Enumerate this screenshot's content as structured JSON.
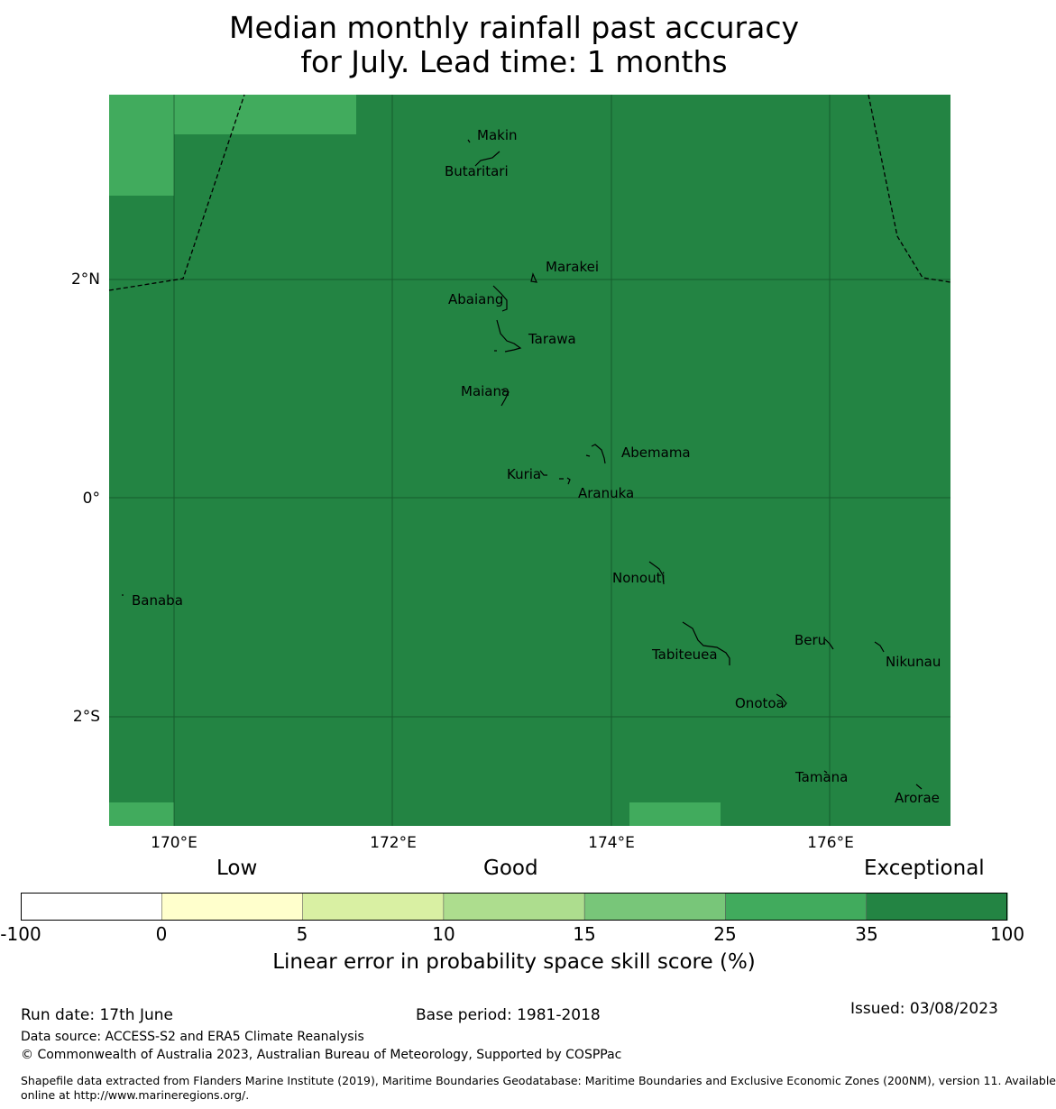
{
  "title": {
    "line1": "Median monthly rainfall past accuracy",
    "line2": "for July. Lead time: 1 months"
  },
  "map": {
    "lon_labels": [
      "170°E",
      "172°E",
      "174°E",
      "176°E"
    ],
    "lat_labels": [
      "2°N",
      "0°",
      "2°S"
    ],
    "places": [
      "Makin",
      "Butaritari",
      "Marakei",
      "Abaiang",
      "Tarawa",
      "Maiana",
      "Abemama",
      "Kuria",
      "Aranuka",
      "Banaba",
      "Nonouti",
      "Beru",
      "Tabiteuea",
      "Nikunau",
      "Onotoa",
      "Tamana",
      "Arorae"
    ],
    "colors": {
      "exceptional": "#238443",
      "very_good": "#41ab5d"
    }
  },
  "legend": {
    "categories": {
      "low": "Low",
      "good": "Good",
      "exceptional": "Exceptional"
    },
    "ticks": [
      "-100",
      "0",
      "5",
      "10",
      "15",
      "25",
      "35",
      "100"
    ],
    "colors": [
      "#ffffff",
      "#ffffcc",
      "#d9f0a3",
      "#addd8e",
      "#78c679",
      "#41ab5d",
      "#238443"
    ],
    "label": "Linear error in probability space skill score (%)"
  },
  "footer": {
    "run_date": "Run date: 17th June",
    "base_period": "Base period: 1981-2018",
    "issued": "Issued: 03/08/2023",
    "data_source": "Data source: ACCESS-S2 and ERA5 Climate Reanalysis",
    "copyright": "© Commonwealth of Australia 2023, Australian Bureau of Meteorology, Supported by COSPPac",
    "shapefile_1": "Shapefile data extracted from Flanders Marine Institute (2019), Maritime Boundaries Geodatabase: Maritime Boundaries and Exclusive Economic Zones (200NM), version 11. Available",
    "shapefile_2": "online at http://www.marineregions.org/."
  }
}
